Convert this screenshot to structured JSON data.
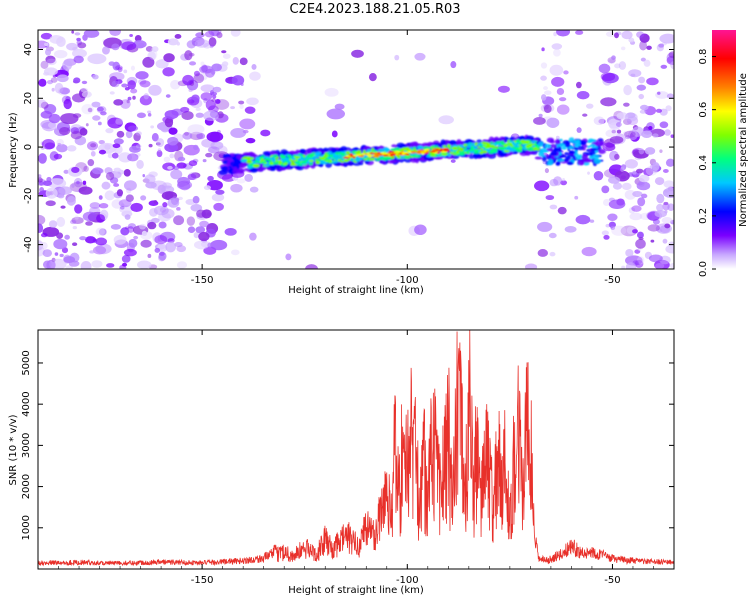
{
  "title": "C2E4.2023.188.21.05.R03",
  "colors": {
    "snr_line": "#e8302a",
    "axis": "#000000",
    "background": "#ffffff",
    "noise": "#9a4dff"
  },
  "chart_data": [
    {
      "type": "heatmap",
      "xlabel": "Height of straight line (km)",
      "ylabel": "Frequency (Hz)",
      "xlim": [
        -190,
        -35
      ],
      "ylim": [
        -50,
        48
      ],
      "xticks": [
        -150,
        -100,
        -50
      ],
      "yticks": [
        -40,
        -20,
        0,
        20,
        40
      ],
      "grid": false,
      "colorbar": {
        "label": "Normalized spectral amplitude",
        "range": [
          0.0,
          0.9
        ],
        "ticks": [
          0.0,
          0.2,
          0.4,
          0.6,
          0.8
        ],
        "colormap": [
          "#ffffff",
          "#b48cff",
          "#6a00ff",
          "#0000ff",
          "#00c8ff",
          "#00ff80",
          "#80ff00",
          "#ffff00",
          "#ff8000",
          "#ff0000",
          "#ff1493"
        ]
      },
      "features": {
        "signal_track": {
          "x_range": [
            -145,
            -68
          ],
          "frequency_start_hz": -7,
          "frequency_end_hz": 1,
          "peak_amplitude": 0.85
        },
        "secondary_blob": {
          "x_range": [
            -68,
            -52
          ],
          "frequency_hz": -2
        },
        "noise_clear_band_x": [
          -137,
          -68
        ]
      }
    },
    {
      "type": "line",
      "xlabel": "Height of straight line (km)",
      "ylabel": "SNR (10 * v/v)",
      "xlim": [
        -190,
        -35
      ],
      "ylim": [
        0,
        5800
      ],
      "xticks": [
        -150,
        -100,
        -50
      ],
      "yticks": [
        1000,
        2000,
        3000,
        4000,
        5000
      ],
      "grid": false,
      "series": [
        {
          "x": [
            -190,
            -180,
            -170,
            -160,
            -150,
            -140,
            -135,
            -130,
            -128,
            -125,
            -122,
            -120,
            -118,
            -115,
            -112,
            -110,
            -108,
            -105,
            -104,
            -103,
            -102,
            -101,
            -100,
            -99,
            -97,
            -96,
            -95,
            -94,
            -92,
            -90,
            -89,
            -88,
            -87,
            -86,
            -85,
            -84.5,
            -84,
            -83,
            -82,
            -81,
            -80,
            -79,
            -78,
            -77,
            -76,
            -75,
            -74,
            -73,
            -72,
            -71,
            -70,
            -69,
            -68,
            -66,
            -62,
            -60,
            -57,
            -55,
            -50,
            -45,
            -40,
            -35
          ],
          "y": [
            150,
            160,
            140,
            170,
            150,
            200,
            260,
            560,
            400,
            650,
            480,
            900,
            600,
            1050,
            700,
            1350,
            1000,
            2600,
            1800,
            4300,
            2400,
            4400,
            3200,
            5000,
            2200,
            3800,
            2000,
            4600,
            2800,
            4800,
            2000,
            5100,
            5300,
            2200,
            5800,
            4800,
            2600,
            4000,
            2000,
            4300,
            3400,
            1800,
            4500,
            2600,
            3800,
            1500,
            4100,
            5000,
            2500,
            4900,
            4400,
            800,
            250,
            200,
            380,
            580,
            350,
            420,
            250,
            200,
            170,
            180
          ]
        }
      ]
    }
  ]
}
